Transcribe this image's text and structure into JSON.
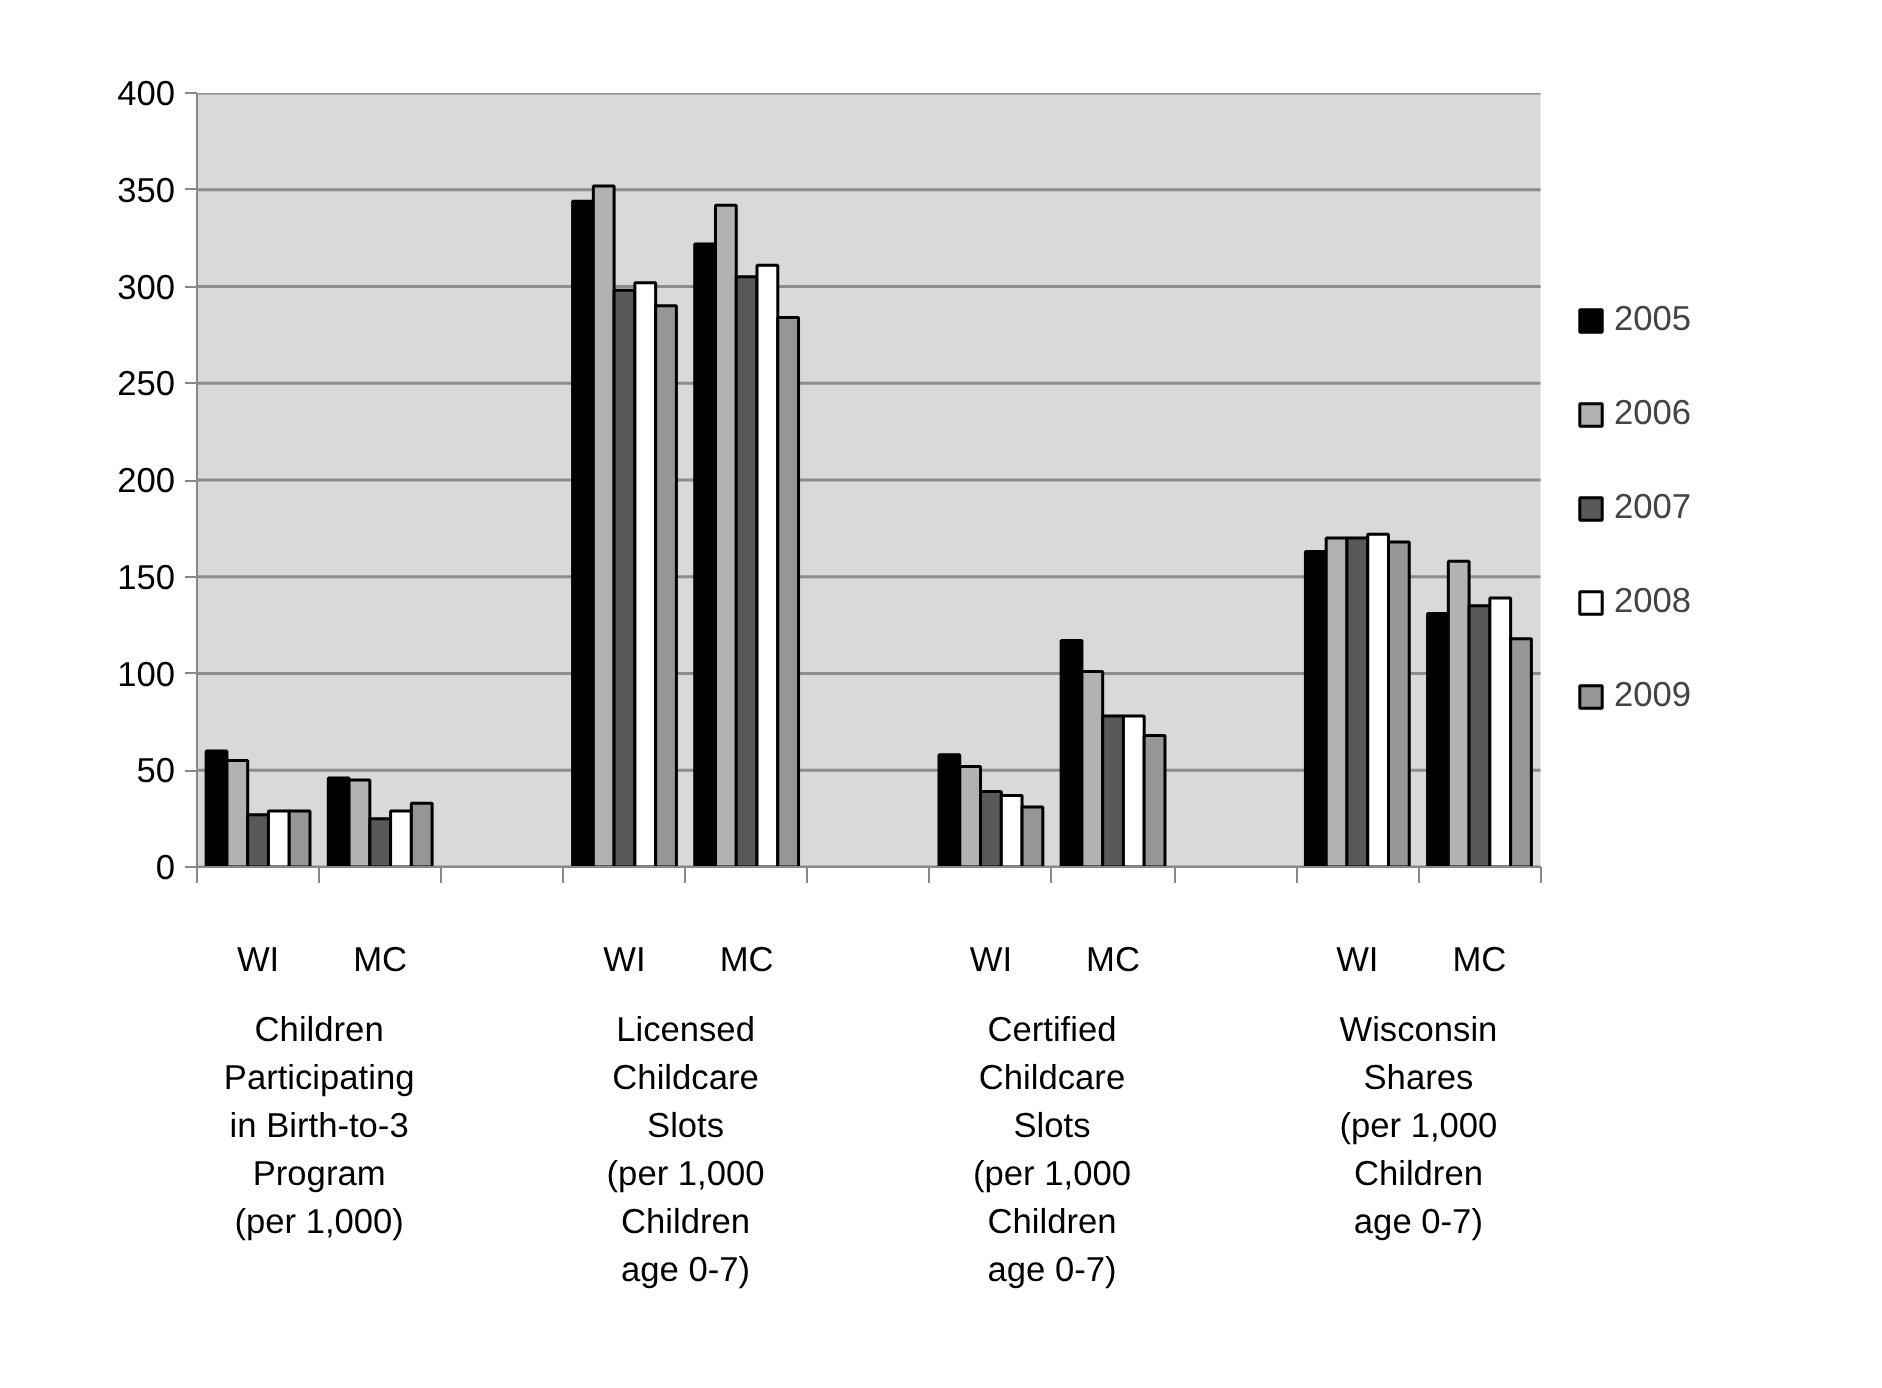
{
  "chart_data": {
    "type": "bar",
    "categories": [
      "WI",
      "MC",
      null,
      "WI",
      "MC",
      null,
      "WI",
      "MC",
      null,
      "WI",
      "MC"
    ],
    "series": [
      {
        "name": "2005",
        "color": "#000000",
        "values": [
          60,
          46,
          null,
          344,
          322,
          null,
          58,
          117,
          null,
          163,
          131
        ]
      },
      {
        "name": "2006",
        "color": "#b2b2b2",
        "values": [
          55,
          45,
          null,
          352,
          342,
          null,
          52,
          101,
          null,
          170,
          158
        ]
      },
      {
        "name": "2007",
        "color": "#595959",
        "values": [
          27,
          25,
          null,
          298,
          305,
          null,
          39,
          78,
          null,
          170,
          135
        ]
      },
      {
        "name": "2008",
        "color": "#ffffff",
        "values": [
          29,
          29,
          null,
          302,
          311,
          null,
          37,
          78,
          null,
          172,
          139
        ]
      },
      {
        "name": "2009",
        "color": "#969696",
        "values": [
          29,
          33,
          null,
          290,
          284,
          null,
          31,
          68,
          null,
          168,
          118
        ]
      }
    ],
    "annotations": [
      "Children\nParticipating\nin Birth-to-3\nProgram\n(per 1,000)",
      "Licensed\nChildcare\nSlots\n(per 1,000\nChildren\nage 0-7)",
      "Certified\nChildcare\nSlots\n(per 1,000\nChildren\nage 0-7)",
      "Wisconsin\nShares\n(per 1,000\nChildren\nage 0-7)"
    ],
    "ylim": [
      0,
      400
    ],
    "yticks": [
      0,
      50,
      100,
      150,
      200,
      250,
      300,
      350,
      400
    ],
    "grid": "y",
    "legend": "right"
  }
}
